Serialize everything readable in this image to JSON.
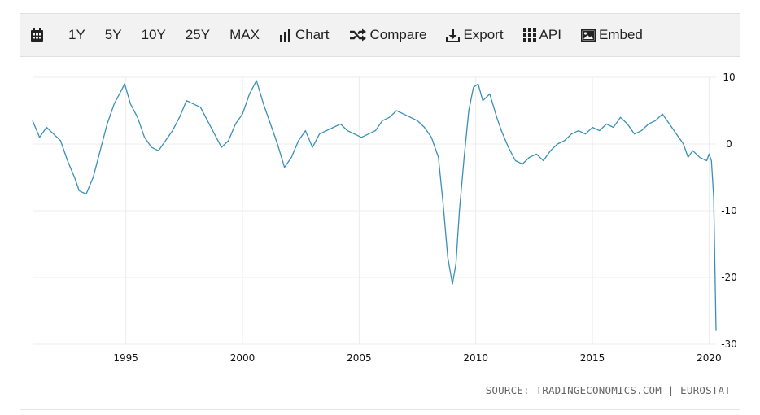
{
  "toolbar": {
    "calendar_icon": "calendar-icon",
    "ranges": [
      "1Y",
      "5Y",
      "10Y",
      "25Y",
      "MAX"
    ],
    "chart_label": "Chart",
    "compare_label": "Compare",
    "export_label": "Export",
    "api_label": "API",
    "embed_label": "Embed"
  },
  "source": "SOURCE: TRADINGECONOMICS.COM | EUROSTAT",
  "colors": {
    "line": "#3a8fb7",
    "grid": "#ececec"
  },
  "chart_data": {
    "type": "line",
    "title": "",
    "xlabel": "",
    "ylabel": "",
    "x_ticks": [
      "1995",
      "2000",
      "2005",
      "2010",
      "2015",
      "2020"
    ],
    "y_ticks": [
      "10",
      "0",
      "-10",
      "-20",
      "-30"
    ],
    "ylim": [
      -30,
      10
    ],
    "xlim": [
      1991.0,
      2020.3
    ],
    "grid": true,
    "y_axis_side": "right",
    "series": [
      {
        "x": [
          1991.0,
          1991.3,
          1991.6,
          1991.9,
          1992.2,
          1992.5,
          1992.8,
          1993.0,
          1993.3,
          1993.6,
          1993.9,
          1994.2,
          1994.5,
          1994.8,
          1994.95,
          1995.2,
          1995.5,
          1995.8,
          1996.1,
          1996.4,
          1996.7,
          1997.0,
          1997.3,
          1997.6,
          1997.9,
          1998.2,
          1998.5,
          1998.8,
          1999.1,
          1999.4,
          1999.7,
          2000.0,
          2000.3,
          2000.6,
          2000.9,
          2001.2,
          2001.5,
          2001.8,
          2002.1,
          2002.4,
          2002.7,
          2003.0,
          2003.3,
          2003.6,
          2003.9,
          2004.2,
          2004.5,
          2004.8,
          2005.1,
          2005.4,
          2005.7,
          2006.0,
          2006.3,
          2006.6,
          2006.9,
          2007.2,
          2007.5,
          2007.8,
          2008.1,
          2008.4,
          2008.6,
          2008.8,
          2009.0,
          2009.15,
          2009.3,
          2009.5,
          2009.7,
          2009.9,
          2010.1,
          2010.3,
          2010.6,
          2010.9,
          2011.1,
          2011.4,
          2011.7,
          2012.0,
          2012.3,
          2012.6,
          2012.9,
          2013.2,
          2013.5,
          2013.8,
          2014.1,
          2014.4,
          2014.7,
          2015.0,
          2015.3,
          2015.6,
          2015.9,
          2016.2,
          2016.5,
          2016.8,
          2017.1,
          2017.4,
          2017.7,
          2018.0,
          2018.3,
          2018.6,
          2018.9,
          2019.1,
          2019.3,
          2019.6,
          2019.9,
          2020.0,
          2020.1,
          2020.2,
          2020.3
        ],
        "y": [
          3.5,
          1.0,
          2.5,
          1.5,
          0.5,
          -2.5,
          -5.0,
          -7.0,
          -7.5,
          -5.0,
          -1.0,
          3.0,
          6.0,
          8.0,
          9.0,
          6.0,
          4.0,
          1.0,
          -0.5,
          -1.0,
          0.5,
          2.0,
          4.0,
          6.5,
          6.0,
          5.5,
          3.5,
          1.5,
          -0.5,
          0.5,
          3.0,
          4.5,
          7.5,
          9.5,
          6.0,
          3.0,
          0.0,
          -3.5,
          -2.0,
          0.5,
          2.0,
          -0.5,
          1.5,
          2.0,
          2.5,
          3.0,
          2.0,
          1.5,
          1.0,
          1.5,
          2.0,
          3.5,
          4.0,
          5.0,
          4.5,
          4.0,
          3.5,
          2.5,
          1.0,
          -2.0,
          -9.0,
          -17.0,
          -21.0,
          -18.0,
          -10.0,
          -2.0,
          5.0,
          8.5,
          9.0,
          6.5,
          7.5,
          4.0,
          2.0,
          -0.5,
          -2.5,
          -3.0,
          -2.0,
          -1.5,
          -2.5,
          -1.0,
          0.0,
          0.5,
          1.5,
          2.0,
          1.5,
          2.5,
          2.0,
          3.0,
          2.5,
          4.0,
          3.0,
          1.5,
          2.0,
          3.0,
          3.5,
          4.5,
          3.0,
          1.5,
          0.0,
          -2.0,
          -1.0,
          -2.0,
          -2.5,
          -1.5,
          -2.5,
          -8.0,
          -28.0
        ]
      }
    ]
  }
}
